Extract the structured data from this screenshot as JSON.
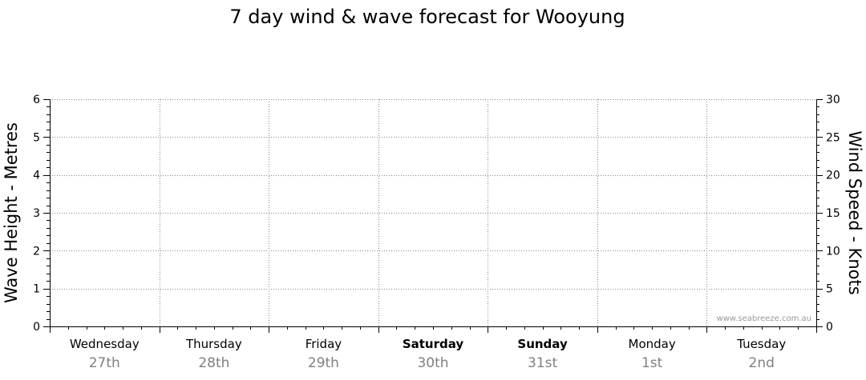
{
  "chart_data": {
    "type": "line",
    "title": "7 day wind & wave forecast for Wooyung",
    "ylabel_left": "Wave Height - Metres",
    "ylabel_right": "Wind Speed - Knots",
    "ylim_left": [
      0,
      6
    ],
    "ylim_right": [
      0,
      30
    ],
    "left_ticks": [
      "0",
      "1",
      "2",
      "3",
      "4",
      "5",
      "6"
    ],
    "right_ticks": [
      "0",
      "5",
      "10",
      "15",
      "20",
      "25",
      "30"
    ],
    "grid": true,
    "days": [
      {
        "name": "Wednesday",
        "date": "27th",
        "bold": false
      },
      {
        "name": "Thursday",
        "date": "28th",
        "bold": false
      },
      {
        "name": "Friday",
        "date": "29th",
        "bold": false
      },
      {
        "name": "Saturday",
        "date": "30th",
        "bold": true
      },
      {
        "name": "Sunday",
        "date": "31st",
        "bold": true
      },
      {
        "name": "Monday",
        "date": "1st",
        "bold": false
      },
      {
        "name": "Tuesday",
        "date": "2nd",
        "bold": false
      }
    ],
    "series": [],
    "watermark": "www.seabreeze.com.au"
  }
}
